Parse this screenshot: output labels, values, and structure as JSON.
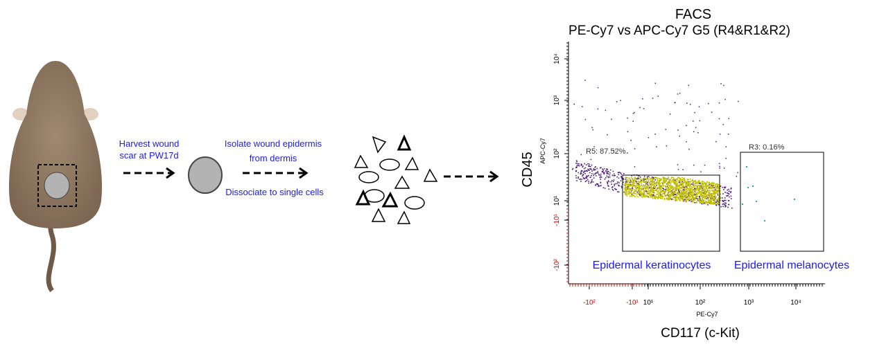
{
  "workflow": {
    "step1": [
      "Harvest wound",
      "scar at PW17d"
    ],
    "step2": [
      "Isolate wound epidermis",
      "from dermis"
    ],
    "step3": "Dissociate to single cells"
  },
  "facs": {
    "title": "FACS",
    "subtitle": "PE-Cy7 vs APC-Cy7  G5 (R4&R1&R2)",
    "y_marker": "CD45",
    "y_axis": "APC-Cy7",
    "x_axis": "PE-Cy7",
    "x_marker": "CD117 (c-Kit)",
    "gate1": {
      "label": "R5: 87.52%",
      "population": "Epidermal keratinocytes"
    },
    "gate2": {
      "label": "R3: 0.16%",
      "population": "Epidermal melanocytes"
    },
    "yticks": [
      "10⁴",
      "10³",
      "10²",
      "10¹",
      "-10¹",
      "-10²"
    ],
    "xticks": [
      "-10²",
      "-10¹",
      "10¹",
      "10²",
      "10³",
      "10⁴"
    ]
  }
}
